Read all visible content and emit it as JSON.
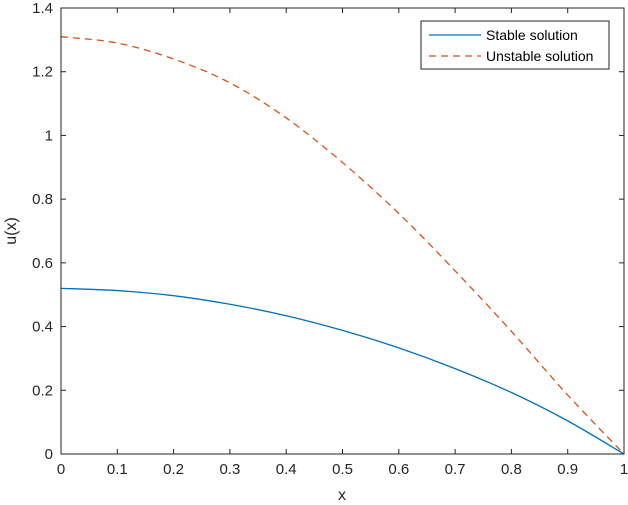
{
  "chart_data": {
    "type": "line",
    "xlabel": "x",
    "ylabel": "u(x)",
    "xlim": [
      0,
      1
    ],
    "ylim": [
      0,
      1.4
    ],
    "xticks": [
      "0",
      "0.1",
      "0.2",
      "0.3",
      "0.4",
      "0.5",
      "0.6",
      "0.7",
      "0.8",
      "0.9",
      "1"
    ],
    "yticks": [
      "0",
      "0.2",
      "0.4",
      "0.6",
      "0.8",
      "1",
      "1.2",
      "1.4"
    ],
    "grid": false,
    "legend_position": "top-right",
    "x": [
      0,
      0.1,
      0.2,
      0.3,
      0.4,
      0.5,
      0.6,
      0.7,
      0.8,
      0.9,
      1.0
    ],
    "series": [
      {
        "name": "Stable solution",
        "color": "#0072BD",
        "style": "solid",
        "values": [
          0.52,
          0.513,
          0.497,
          0.47,
          0.434,
          0.388,
          0.333,
          0.268,
          0.193,
          0.104,
          0.0
        ]
      },
      {
        "name": "Unstable solution",
        "color": "#D95319",
        "style": "dashed",
        "values": [
          1.31,
          1.29,
          1.24,
          1.165,
          1.055,
          0.915,
          0.755,
          0.575,
          0.385,
          0.185,
          0.0
        ]
      }
    ]
  }
}
